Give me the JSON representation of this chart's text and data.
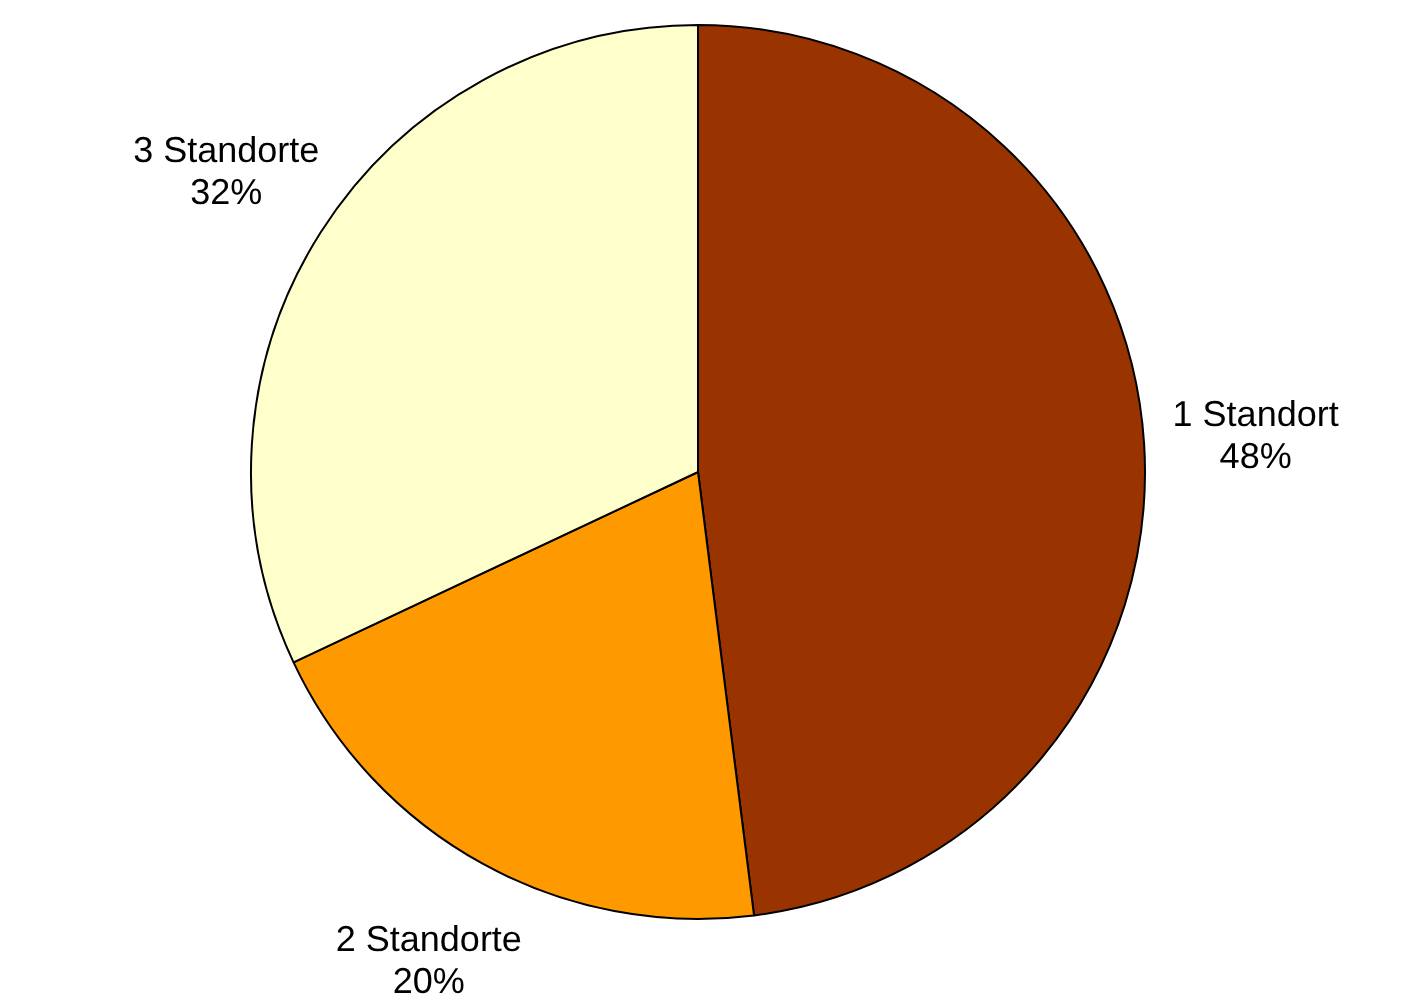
{
  "chart_data": {
    "type": "pie",
    "categories": [
      "1 Standort",
      "2 Standorte",
      "3 Standorte"
    ],
    "values": [
      48,
      20,
      32
    ],
    "value_labels": [
      "48%",
      "20%",
      "32%"
    ],
    "colors": [
      "#993300",
      "#ff9900",
      "#ffffcc"
    ],
    "legend": false
  }
}
